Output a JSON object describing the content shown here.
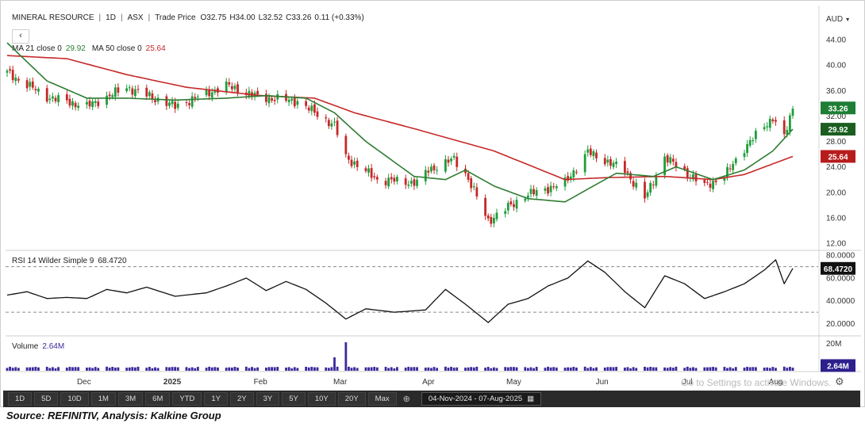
{
  "header": {
    "symbol": "MINERAL RESOURCE",
    "interval": "1D",
    "exchange": "ASX",
    "price_type": "Trade Price",
    "ohlc_open": "O32.75",
    "ohlc_high": "H34.00",
    "ohlc_low": "L32.52",
    "ohlc_close": "C33.26",
    "change": "0.11 (+0.33%)",
    "currency": "AUD",
    "back_label": "‹"
  },
  "legend": {
    "ma21_label": "MA 21 close 0",
    "ma21_value": "29.92",
    "ma50_label": "MA 50 close 0",
    "ma50_value": "25.64",
    "rsi_label": "RSI 14 Wilder Simple 9",
    "rsi_value": "68.4720",
    "volume_label": "Volume",
    "volume_value": "2.64M"
  },
  "colors": {
    "up": "#1e9e3a",
    "down": "#c62828",
    "ma21": "#2e7d32",
    "ma50": "#c62828",
    "volume": "#3b2a9b",
    "rsi": "#111111"
  },
  "axis_badges": {
    "price": "33.26",
    "ma21": "29.92",
    "ma50": "25.64",
    "rsi": "68.4720",
    "volume": "2.64M"
  },
  "chart_data": {
    "type": "candlestick",
    "price_axis": {
      "ticks": [
        "44.00",
        "40.00",
        "36.00",
        "32.00",
        "28.00",
        "24.00",
        "20.00",
        "16.00",
        "12.00"
      ],
      "ylim": [
        12,
        44
      ]
    },
    "rsi_axis": {
      "ticks": [
        "80.0000",
        "60.0000",
        "40.0000",
        "20.0000"
      ],
      "ylim": [
        12,
        85
      ],
      "dashed_levels": [
        70,
        30
      ]
    },
    "volume_axis": {
      "ticks": [
        "20M"
      ],
      "ylim": [
        0,
        22
      ]
    },
    "x_labels": [
      {
        "label": "Dec",
        "date": "2024-12-01"
      },
      {
        "label": "2025",
        "date": "2025-01-01"
      },
      {
        "label": "Feb",
        "date": "2025-02-01"
      },
      {
        "label": "Mar",
        "date": "2025-03-01"
      },
      {
        "label": "Apr",
        "date": "2025-04-01"
      },
      {
        "label": "May",
        "date": "2025-05-01"
      },
      {
        "label": "Jun",
        "date": "2025-06-01"
      },
      {
        "label": "Jul",
        "date": "2025-07-01"
      },
      {
        "label": "Aug",
        "date": "2025-08-01"
      }
    ],
    "x_range": [
      "2024-11-04",
      "2025-08-07"
    ],
    "close_keypoints": [
      [
        "2024-11-04",
        38.8
      ],
      [
        "2024-11-18",
        35.0
      ],
      [
        "2024-12-02",
        33.5
      ],
      [
        "2024-12-16",
        36.5
      ],
      [
        "2025-01-02",
        33.5
      ],
      [
        "2025-01-20",
        36.8
      ],
      [
        "2025-01-31",
        35.0
      ],
      [
        "2025-02-14",
        34.3
      ],
      [
        "2025-02-27",
        30.5
      ],
      [
        "2025-03-03",
        25.5
      ],
      [
        "2025-03-14",
        22.0
      ],
      [
        "2025-03-28",
        21.5
      ],
      [
        "2025-04-01",
        23.5
      ],
      [
        "2025-04-10",
        25.2
      ],
      [
        "2025-04-14",
        23.0
      ],
      [
        "2025-04-22",
        15.5
      ],
      [
        "2025-05-05",
        19.5
      ],
      [
        "2025-05-19",
        21.5
      ],
      [
        "2025-05-27",
        26.3
      ],
      [
        "2025-06-09",
        23.5
      ],
      [
        "2025-06-16",
        19.0
      ],
      [
        "2025-06-23",
        25.5
      ],
      [
        "2025-07-07",
        21.0
      ],
      [
        "2025-07-14",
        22.5
      ],
      [
        "2025-07-21",
        27.0
      ],
      [
        "2025-07-31",
        31.8
      ],
      [
        "2025-08-04",
        28.5
      ],
      [
        "2025-08-07",
        33.26
      ]
    ],
    "ma21_keypoints": [
      [
        "2024-11-04",
        43.5
      ],
      [
        "2024-11-18",
        37.5
      ],
      [
        "2024-12-02",
        34.8
      ],
      [
        "2024-12-16",
        34.8
      ],
      [
        "2025-01-02",
        34.5
      ],
      [
        "2025-01-20",
        34.8
      ],
      [
        "2025-02-03",
        35.2
      ],
      [
        "2025-02-17",
        34.8
      ],
      [
        "2025-02-27",
        32.5
      ],
      [
        "2025-03-10",
        28.0
      ],
      [
        "2025-03-27",
        22.5
      ],
      [
        "2025-04-07",
        22.0
      ],
      [
        "2025-04-14",
        23.5
      ],
      [
        "2025-04-24",
        21.0
      ],
      [
        "2025-05-06",
        19.0
      ],
      [
        "2025-05-19",
        18.5
      ],
      [
        "2025-05-27",
        20.5
      ],
      [
        "2025-06-06",
        23.0
      ],
      [
        "2025-06-19",
        22.5
      ],
      [
        "2025-06-27",
        24.0
      ],
      [
        "2025-07-10",
        22.0
      ],
      [
        "2025-07-21",
        23.5
      ],
      [
        "2025-07-31",
        26.5
      ],
      [
        "2025-08-07",
        29.92
      ]
    ],
    "ma50_keypoints": [
      [
        "2024-11-04",
        41.5
      ],
      [
        "2024-11-25",
        41.0
      ],
      [
        "2024-12-16",
        38.5
      ],
      [
        "2025-01-06",
        36.5
      ],
      [
        "2025-02-01",
        35.2
      ],
      [
        "2025-02-20",
        34.8
      ],
      [
        "2025-03-06",
        32.5
      ],
      [
        "2025-03-27",
        30.0
      ],
      [
        "2025-04-24",
        26.5
      ],
      [
        "2025-05-19",
        22.0
      ],
      [
        "2025-06-02",
        22.3
      ],
      [
        "2025-06-23",
        22.5
      ],
      [
        "2025-07-10",
        22.0
      ],
      [
        "2025-07-21",
        22.8
      ],
      [
        "2025-08-07",
        25.64
      ]
    ],
    "rsi_keypoints": [
      [
        "2024-11-04",
        45
      ],
      [
        "2024-11-11",
        48
      ],
      [
        "2024-11-18",
        42
      ],
      [
        "2024-11-25",
        43
      ],
      [
        "2024-12-02",
        42
      ],
      [
        "2024-12-09",
        50
      ],
      [
        "2024-12-16",
        47
      ],
      [
        "2024-12-23",
        52
      ],
      [
        "2025-01-02",
        44
      ],
      [
        "2025-01-13",
        47
      ],
      [
        "2025-01-20",
        53
      ],
      [
        "2025-01-27",
        60
      ],
      [
        "2025-02-03",
        49
      ],
      [
        "2025-02-10",
        57
      ],
      [
        "2025-02-17",
        50
      ],
      [
        "2025-02-24",
        38
      ],
      [
        "2025-03-03",
        24
      ],
      [
        "2025-03-10",
        33
      ],
      [
        "2025-03-20",
        30
      ],
      [
        "2025-03-31",
        32
      ],
      [
        "2025-04-07",
        50
      ],
      [
        "2025-04-14",
        37
      ],
      [
        "2025-04-22",
        21
      ],
      [
        "2025-04-29",
        37
      ],
      [
        "2025-05-06",
        42
      ],
      [
        "2025-05-13",
        53
      ],
      [
        "2025-05-20",
        60
      ],
      [
        "2025-05-27",
        75
      ],
      [
        "2025-06-02",
        65
      ],
      [
        "2025-06-09",
        48
      ],
      [
        "2025-06-16",
        34
      ],
      [
        "2025-06-23",
        62
      ],
      [
        "2025-06-30",
        55
      ],
      [
        "2025-07-07",
        42
      ],
      [
        "2025-07-14",
        48
      ],
      [
        "2025-07-21",
        55
      ],
      [
        "2025-07-28",
        67
      ],
      [
        "2025-08-01",
        76
      ],
      [
        "2025-08-04",
        55
      ],
      [
        "2025-08-07",
        68.47
      ]
    ],
    "volume_spikes": [
      [
        "2025-02-27",
        9.8
      ],
      [
        "2025-03-03",
        20.8
      ]
    ],
    "volume_base": 1.6
  },
  "range_buttons": [
    "1D",
    "5D",
    "10D",
    "1M",
    "3M",
    "6M",
    "YTD",
    "1Y",
    "2Y",
    "3Y",
    "5Y",
    "10Y",
    "20Y",
    "Max"
  ],
  "date_range": "04-Nov-2024 - 07-Aug-2025",
  "watermark": "Go to Settings to activate Windows.",
  "source": "Source: REFINITIV, Analysis: Kalkine Group"
}
